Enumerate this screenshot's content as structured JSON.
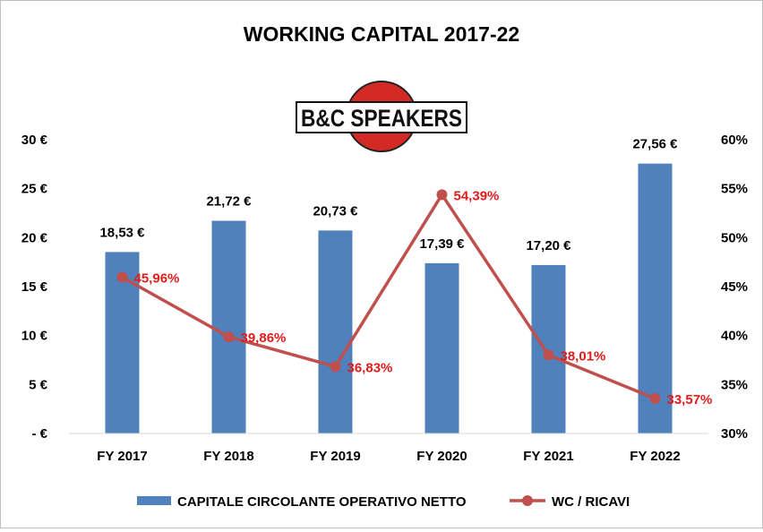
{
  "chart_data": {
    "type": "bar+line",
    "title": "WORKING CAPITAL 2017-22",
    "categories": [
      "FY 2017",
      "FY 2018",
      "FY 2019",
      "FY 2020",
      "FY 2021",
      "FY 2022"
    ],
    "series": [
      {
        "name": "CAPITALE CIRCOLANTE OPERATIVO NETTO",
        "type": "bar",
        "axis": "left",
        "values": [
          18.53,
          21.72,
          20.73,
          17.39,
          17.2,
          27.56
        ],
        "labels": [
          "18,53 €",
          "21,72 €",
          "20,73 €",
          "17,39 €",
          "17,20 €",
          "27,56 €"
        ],
        "color": "#4f81bd"
      },
      {
        "name": "WC / RICAVI",
        "type": "line",
        "axis": "right",
        "values": [
          45.96,
          39.86,
          36.83,
          54.39,
          38.01,
          33.57
        ],
        "labels": [
          "45,96%",
          "39,86%",
          "36,83%",
          "54,39%",
          "38,01%",
          "33,57%"
        ],
        "color": "#c0504d",
        "label_color": "#e21b1b"
      }
    ],
    "y_left": {
      "lim": [
        0,
        30
      ],
      "ticks": [
        0,
        5,
        10,
        15,
        20,
        25,
        30
      ],
      "tick_labels": [
        "- €",
        "5 €",
        "10 €",
        "15 €",
        "20 €",
        "25 €",
        "30 €"
      ]
    },
    "y_right": {
      "lim": [
        30,
        60
      ],
      "ticks": [
        30,
        35,
        40,
        45,
        50,
        55,
        60
      ],
      "tick_labels": [
        "30%",
        "35%",
        "40%",
        "45%",
        "50%",
        "55%",
        "60%"
      ]
    },
    "grid": false,
    "legend": "bottom"
  },
  "logo": {
    "text": "B&C SPEAKERS"
  }
}
